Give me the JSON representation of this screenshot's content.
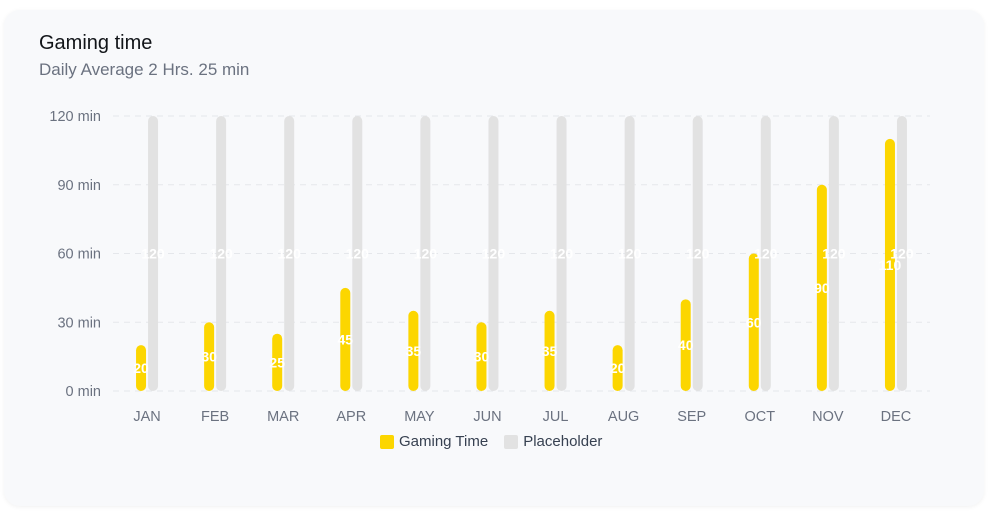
{
  "card": {
    "title": "Gaming time",
    "subtitle": "Daily Average 2 Hrs. 25 min"
  },
  "colors": {
    "gaming": "#fcd600",
    "placeholder": "#e2e2e2",
    "grid": "#e5e7eb"
  },
  "chart_data": {
    "type": "bar",
    "categories": [
      "JAN",
      "FEB",
      "MAR",
      "APR",
      "MAY",
      "JUN",
      "JUL",
      "AUG",
      "SEP",
      "OCT",
      "NOV",
      "DEC"
    ],
    "series": [
      {
        "name": "Gaming Time",
        "values": [
          20,
          30,
          25,
          45,
          35,
          30,
          35,
          20,
          40,
          60,
          90,
          110
        ]
      },
      {
        "name": "Placeholder",
        "values": [
          120,
          120,
          120,
          120,
          120,
          120,
          120,
          120,
          120,
          120,
          120,
          120
        ]
      }
    ],
    "y_ticks": [
      "0 min",
      "30 min",
      "60 min",
      "90 min",
      "120 min"
    ],
    "ylim": [
      0,
      120
    ],
    "grid": true,
    "legend_position": "bottom"
  }
}
